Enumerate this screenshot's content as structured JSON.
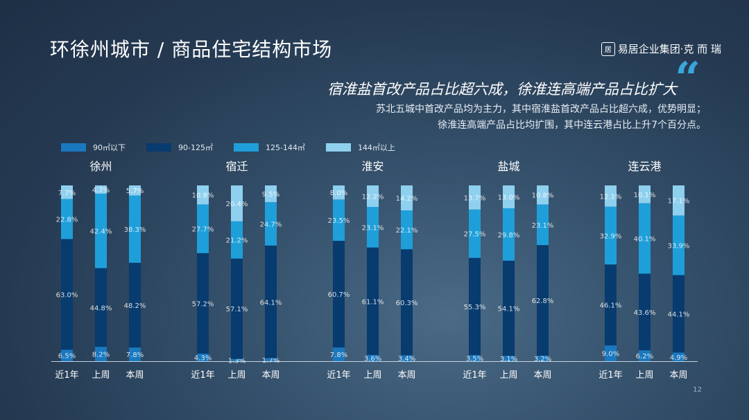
{
  "header": {
    "title": "环徐州城市 / 商品住宅结构市场",
    "brand": "易居企业集团·克 而 瑞",
    "brand_logo": "居"
  },
  "subtitle": "宿淮盐首改产品占比超六成，徐淮连高端产品占比扩大",
  "quote_mark": "“",
  "description": {
    "line1": "苏北五城中首改产品均为主力，其中宿淮盐首改产品占比超六成，优势明显；",
    "line2": "徐淮连高端产品占比均扩围，其中连云港占比上升7个百分点。"
  },
  "page_number": "12",
  "colors": {
    "s1": "#1a78bf",
    "s2": "#083b6e",
    "s3": "#1f9fda",
    "s4": "#8fd0ef"
  },
  "chart_data": {
    "type": "bar",
    "stacked": true,
    "normalized_percent": true,
    "legend_position": "top-left",
    "grid": false,
    "series_names": [
      "90㎡以下",
      "90-125㎡",
      "125-144㎡",
      "144㎡以上"
    ],
    "groups": [
      {
        "city": "徐州",
        "bars": [
          {
            "label": "近1年",
            "values": [
              6.5,
              63.0,
              22.8,
              7.7
            ],
            "labels": [
              "6.5%",
              "63.0%",
              "22.8%",
              "7.7%"
            ]
          },
          {
            "label": "上周",
            "values": [
              8.2,
              44.8,
              42.4,
              4.7
            ],
            "labels": [
              "8.2%",
              "44.8%",
              "42.4%",
              "4.7%"
            ]
          },
          {
            "label": "本周",
            "values": [
              7.8,
              48.2,
              38.3,
              5.7
            ],
            "labels": [
              "7.8%",
              "48.2%",
              "38.3%",
              "5.7%"
            ]
          }
        ]
      },
      {
        "city": "宿迁",
        "bars": [
          {
            "label": "近1年",
            "values": [
              4.3,
              57.2,
              27.7,
              10.8
            ],
            "labels": [
              "4.3%",
              "57.2%",
              "27.7%",
              "10.8%"
            ]
          },
          {
            "label": "上周",
            "values": [
              1.3,
              57.1,
              21.2,
              20.4
            ],
            "labels": [
              "1.3%",
              "57.1%",
              "21.2%",
              "20.4%"
            ]
          },
          {
            "label": "本周",
            "values": [
              1.7,
              64.1,
              24.7,
              9.5
            ],
            "labels": [
              "1.7%",
              "64.1%",
              "24.7%",
              "9.5%"
            ]
          }
        ]
      },
      {
        "city": "淮安",
        "bars": [
          {
            "label": "近1年",
            "values": [
              7.8,
              60.7,
              23.5,
              8.0
            ],
            "labels": [
              "7.8%",
              "60.7%",
              "23.5%",
              "8.0%"
            ]
          },
          {
            "label": "上周",
            "values": [
              3.6,
              61.1,
              23.1,
              12.2
            ],
            "labels": [
              "3.6%",
              "61.1%",
              "23.1%",
              "12.2%"
            ]
          },
          {
            "label": "本周",
            "values": [
              3.4,
              60.3,
              22.1,
              14.2
            ],
            "labels": [
              "3.4%",
              "60.3%",
              "22.1%",
              "14.2%"
            ]
          }
        ]
      },
      {
        "city": "盐城",
        "bars": [
          {
            "label": "近1年",
            "values": [
              3.5,
              55.3,
              27.5,
              13.7
            ],
            "labels": [
              "3.5%",
              "55.3%",
              "27.5%",
              "13.7%"
            ]
          },
          {
            "label": "上周",
            "values": [
              3.1,
              54.1,
              29.8,
              13.0
            ],
            "labels": [
              "3.1%",
              "54.1%",
              "29.8%",
              "13.0%"
            ]
          },
          {
            "label": "本周",
            "values": [
              3.2,
              62.8,
              23.1,
              10.8
            ],
            "labels": [
              "3.2%",
              "62.8%",
              "23.1%",
              "10.8%"
            ]
          }
        ]
      },
      {
        "city": "连云港",
        "bars": [
          {
            "label": "近1年",
            "values": [
              9.0,
              46.1,
              32.9,
              12.1
            ],
            "labels": [
              "9.0%",
              "46.1%",
              "32.9%",
              "12.1%"
            ]
          },
          {
            "label": "上周",
            "values": [
              6.2,
              43.6,
              40.1,
              10.1
            ],
            "labels": [
              "6.2%",
              "43.6%",
              "40.1%",
              "10.1%"
            ]
          },
          {
            "label": "本周",
            "values": [
              4.9,
              44.1,
              33.9,
              17.1
            ],
            "labels": [
              "4.9%",
              "44.1%",
              "33.9%",
              "17.1%"
            ]
          }
        ]
      }
    ]
  }
}
